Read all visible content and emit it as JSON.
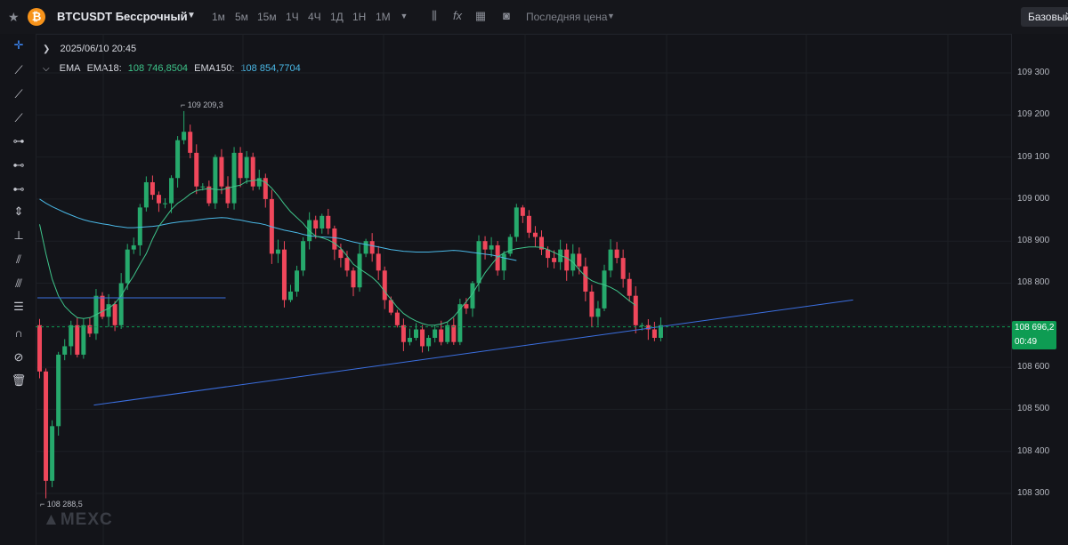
{
  "topbar": {
    "symbol": "BTCUSDT Бессрочный",
    "coin_glyph": "₿",
    "timeframes": [
      "1м",
      "5м",
      "15м",
      "1Ч",
      "4Ч",
      "1Д",
      "1Н",
      "1М"
    ],
    "active_timeframe": "1м",
    "price_type": "Последняя цена",
    "mode_button": "Базовый"
  },
  "legend": {
    "date": "2025/06/10 20:45",
    "indicator": "EMA",
    "ema18_label": "EMA18:",
    "ema18_value": "108 746,8504",
    "ema150_label": "EMA150:",
    "ema150_value": "108 854,7704"
  },
  "price_axis": {
    "ticks": [
      "109 300",
      "109 200",
      "109 100",
      "109 000",
      "108 900",
      "108 800",
      "108 600",
      "108 500",
      "108 400",
      "108 300"
    ],
    "current_price": "108 696,2",
    "countdown": "00:49"
  },
  "markers": {
    "high": "109 209,3",
    "low": "108 288,5"
  },
  "watermark": "MEXC",
  "colors": {
    "up": "#26a96c",
    "down": "#f0475b",
    "ema18": "#3ec48a",
    "ema150": "#4ab8e6",
    "trendline": "#3b6fe0",
    "accent": "#0e9c53"
  },
  "chart_data": {
    "type": "candlestick",
    "interval": "1м",
    "current_price": 108696.2,
    "high_marker": 109209.3,
    "low_marker": 108288.5,
    "close": [
      108590,
      108330,
      108460,
      108630,
      108650,
      108700,
      108630,
      108700,
      108680,
      108770,
      108720,
      108750,
      108700,
      108800,
      108880,
      108890,
      108980,
      109040,
      109010,
      108990,
      108990,
      109050,
      109140,
      109160,
      109110,
      109030,
      109030,
      108990,
      109100,
      109030,
      108990,
      109110,
      109050,
      109100,
      109030,
      109050,
      109000,
      108870,
      108880,
      108760,
      108780,
      108830,
      108900,
      108950,
      108930,
      108960,
      108930,
      108880,
      108860,
      108830,
      108790,
      108870,
      108900,
      108870,
      108830,
      108760,
      108730,
      108700,
      108660,
      108670,
      108690,
      108650,
      108670,
      108690,
      108660,
      108700,
      108660,
      108750,
      108740,
      108800,
      108900,
      108880,
      108890,
      108830,
      108870,
      108910,
      108980,
      108960,
      108920,
      108910,
      108880,
      108860,
      108850,
      108880,
      108830,
      108870,
      108840,
      108780,
      108720,
      108740,
      108830,
      108880,
      108860,
      108810,
      108770,
      108700,
      108700,
      108690,
      108670,
      108700
    ],
    "ema18": [
      108940,
      108870,
      108810,
      108770,
      108745,
      108730,
      108718,
      108716,
      108718,
      108725,
      108733,
      108740,
      108752,
      108770,
      108795,
      108818,
      108845,
      108870,
      108905,
      108935,
      108955,
      108975,
      108990,
      109000,
      109012,
      109020,
      109023,
      109025,
      109023,
      109022,
      109026,
      109030,
      109033,
      109042,
      109044,
      109046,
      109040,
      109026,
      109008,
      108988,
      108970,
      108956,
      108942,
      108924,
      108912,
      108908,
      108903,
      108895,
      108883,
      108865,
      108845,
      108834,
      108824,
      108814,
      108800,
      108780,
      108762,
      108743,
      108728,
      108718,
      108710,
      108704,
      108700,
      108700,
      108703,
      108708,
      108720,
      108738,
      108756,
      108775,
      108800,
      108825,
      108844,
      108862,
      108872,
      108878,
      108882,
      108884,
      108886,
      108886,
      108885,
      108880,
      108873,
      108866,
      108860,
      108850,
      108832,
      108816,
      108806,
      108800,
      108796,
      108790,
      108782,
      108770,
      108758,
      108747
    ],
    "ema150": [
      109000,
      108990,
      108982,
      108975,
      108968,
      108962,
      108956,
      108951,
      108947,
      108944,
      108941,
      108939,
      108936,
      108934,
      108932,
      108932,
      108933,
      108934,
      108935,
      108937,
      108940,
      108943,
      108945,
      108947,
      108948,
      108950,
      108952,
      108954,
      108955,
      108956,
      108955,
      108952,
      108950,
      108947,
      108944,
      108942,
      108939,
      108934,
      108930,
      108926,
      108923,
      108920,
      108916,
      108913,
      108911,
      108910,
      108909,
      108908,
      108906,
      108902,
      108898,
      108895,
      108892,
      108889,
      108886,
      108883,
      108880,
      108878,
      108876,
      108875,
      108874,
      108874,
      108874,
      108875,
      108876,
      108877,
      108878,
      108877,
      108875,
      108873,
      108871,
      108869,
      108867,
      108864,
      108860,
      108857,
      108854
    ],
    "trendlines": [
      {
        "x1": 0,
        "y1": 108765,
        "x2": 30,
        "y2": 108765
      },
      {
        "x1": 9,
        "y1": 108510,
        "x2": 130,
        "y2": 108760
      }
    ]
  }
}
